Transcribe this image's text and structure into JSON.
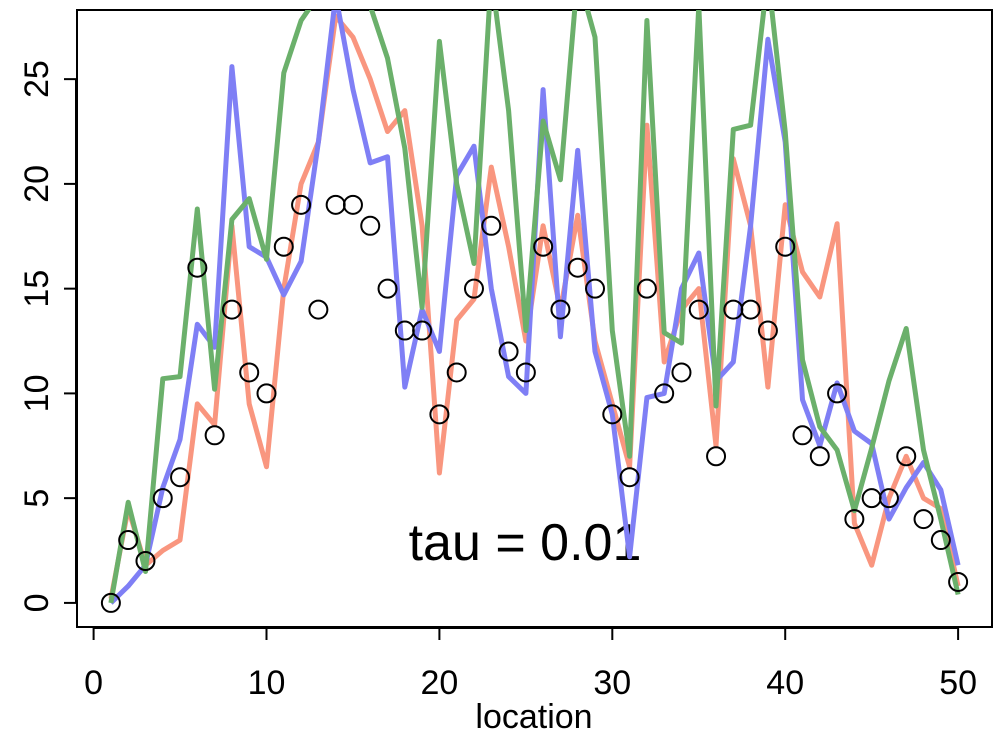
{
  "chart_data": {
    "type": "line",
    "xlabel": "location",
    "annotation": "tau = 0.01",
    "x": [
      1,
      2,
      3,
      4,
      5,
      6,
      7,
      8,
      9,
      10,
      11,
      12,
      13,
      14,
      15,
      16,
      17,
      18,
      19,
      20,
      21,
      22,
      23,
      24,
      25,
      26,
      27,
      28,
      29,
      30,
      31,
      32,
      33,
      34,
      35,
      36,
      37,
      38,
      39,
      40,
      41,
      42,
      43,
      44,
      45,
      46,
      47,
      48,
      49,
      50
    ],
    "series": [
      {
        "style": "points",
        "color": "#000000",
        "values": [
          0,
          3,
          2,
          5,
          6,
          16,
          8,
          14,
          11,
          10,
          17,
          19,
          14,
          19,
          19,
          18,
          15,
          13,
          13,
          9,
          11,
          15,
          18,
          12,
          11,
          17,
          14,
          16,
          15,
          9,
          6,
          15,
          10,
          11,
          14,
          7,
          14,
          14,
          13,
          17,
          8,
          7,
          10,
          4,
          5,
          5,
          7,
          4,
          3,
          1
        ]
      },
      {
        "style": "line",
        "color": "#f9967f",
        "values": [
          0.2,
          4.5,
          1.8,
          2.5,
          3,
          9.5,
          8.5,
          18,
          9.5,
          6.5,
          15,
          20,
          22,
          28,
          27,
          25,
          22.5,
          23.5,
          18,
          6.2,
          13.5,
          14.5,
          20.8,
          17,
          12.5,
          18,
          14,
          18.5,
          12.5,
          9.5,
          6.5,
          22.8,
          11.5,
          14,
          15,
          7.5,
          21.2,
          18,
          10.3,
          19,
          15.8,
          14.6,
          18.1,
          3.8,
          1.8,
          5,
          7,
          5,
          4.5,
          0.8
        ]
      },
      {
        "style": "line",
        "color": "#7f7ff5",
        "values": [
          0,
          0.8,
          1.8,
          5.5,
          7.8,
          13.3,
          12.2,
          25.6,
          17,
          16.5,
          14.7,
          16.3,
          22,
          29,
          24.5,
          21,
          21.3,
          10.3,
          14,
          12,
          20.4,
          21.8,
          15,
          10.8,
          10,
          24.5,
          12.7,
          21.6,
          12,
          9,
          2.2,
          9.8,
          10,
          15,
          16.7,
          10.6,
          11.5,
          18,
          26.9,
          22,
          9.7,
          7.5,
          10.5,
          8.2,
          7.6,
          4,
          5.5,
          6.7,
          5.4,
          1.8
        ]
      },
      {
        "style": "line",
        "color": "#6bb06b",
        "values": [
          0,
          4.8,
          1.5,
          10.7,
          10.8,
          18.8,
          10.2,
          18.3,
          19.3,
          16.4,
          25.3,
          27.8,
          29,
          30,
          29,
          28.5,
          26,
          21.7,
          14.1,
          26.8,
          20,
          16.2,
          30,
          23.5,
          13,
          23,
          20.2,
          30,
          27,
          13,
          7,
          27.8,
          12.9,
          12.4,
          28.5,
          9.4,
          22.6,
          22.8,
          30,
          22.5,
          11.6,
          8.4,
          7.3,
          4.4,
          7.4,
          10.6,
          13.1,
          7.3,
          4,
          0.4
        ]
      }
    ],
    "xlim": [
      -0.96,
      51.96
    ],
    "ylim": [
      -1.15,
      28.3
    ],
    "xticks": [
      0,
      10,
      20,
      30,
      40,
      50
    ],
    "yticks": [
      0,
      5,
      10,
      15,
      20,
      25
    ]
  }
}
